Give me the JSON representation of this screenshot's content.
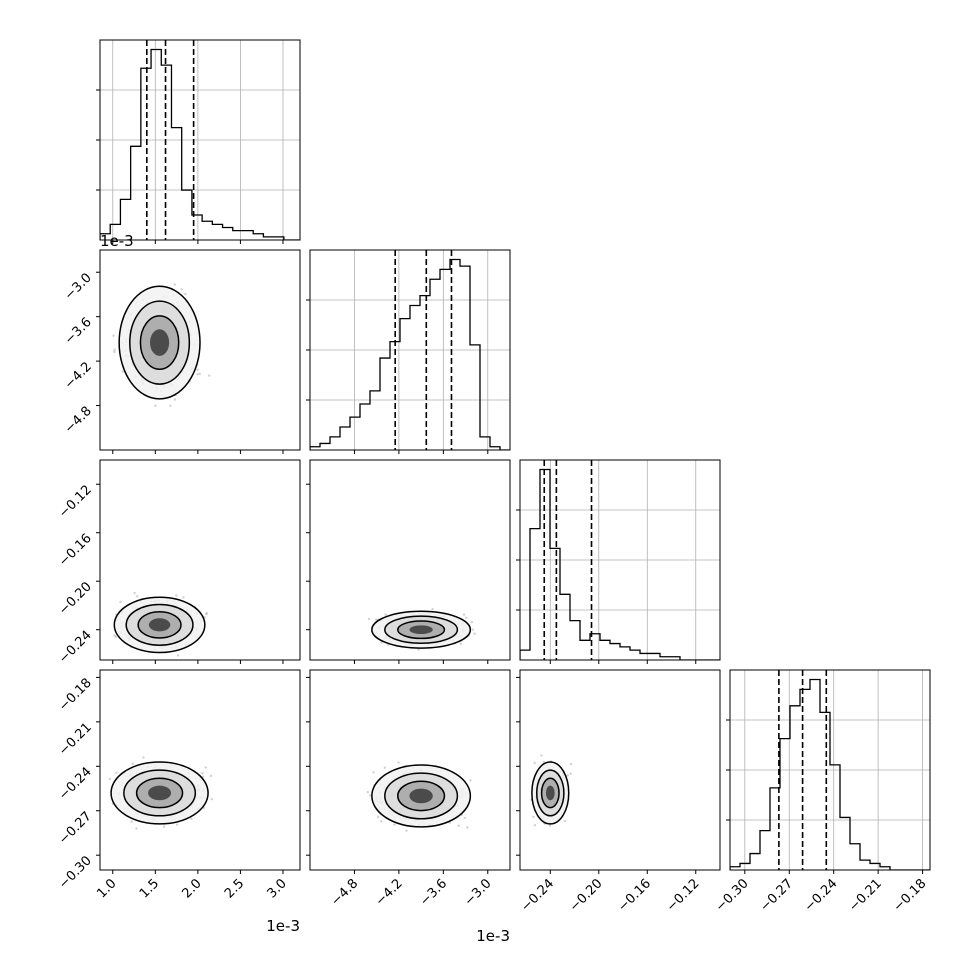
{
  "chart_data": {
    "type": "corner",
    "grid": true,
    "params": [
      {
        "xlim": [
          0.00085,
          0.0032
        ],
        "ticks": [
          0.001,
          0.0015,
          0.002,
          0.0025,
          0.003
        ],
        "tick_labels": [
          "1.0",
          "1.5",
          "2.0",
          "2.5",
          "3.0"
        ],
        "offset_label": "1e-3"
      },
      {
        "xlim": [
          -0.0054,
          -0.0027
        ],
        "ticks": [
          -0.0048,
          -0.0042,
          -0.0036,
          -0.003
        ],
        "tick_labels": [
          "−4.8",
          "−4.2",
          "−3.6",
          "−3.0"
        ],
        "offset_label": "1e-3"
      },
      {
        "xlim": [
          -0.265,
          -0.1
        ],
        "ticks": [
          -0.24,
          -0.2,
          -0.16,
          -0.12
        ],
        "tick_labels": [
          "−0.24",
          "−0.20",
          "−0.16",
          "−0.12"
        ],
        "offset_label": ""
      },
      {
        "xlim": [
          -0.31,
          -0.175
        ],
        "ticks": [
          -0.3,
          -0.27,
          -0.24,
          -0.21,
          -0.18
        ],
        "tick_labels": [
          "−0.30",
          "−0.27",
          "−0.24",
          "−0.21",
          "−0.18"
        ],
        "offset_label": ""
      }
    ],
    "histograms": [
      {
        "quantiles": [
          0.0014,
          0.00162,
          0.00195
        ],
        "bins": [
          0.00085,
          0.00097,
          0.00109,
          0.00121,
          0.00133,
          0.00145,
          0.00157,
          0.00169,
          0.00181,
          0.00193,
          0.00205,
          0.00217,
          0.00229,
          0.00241,
          0.00253,
          0.00265,
          0.00277,
          0.00289,
          0.00301,
          0.00313,
          0.00325
        ],
        "counts": [
          2,
          5,
          13,
          30,
          55,
          61,
          56,
          36,
          16,
          8,
          6,
          5,
          4,
          3,
          3,
          2,
          1,
          1,
          0,
          0
        ]
      },
      {
        "quantiles": [
          -0.00425,
          -0.00383,
          -0.00349
        ],
        "bins": [
          -0.0054,
          -0.005265,
          -0.00513,
          -0.004995,
          -0.00486,
          -0.004725,
          -0.00459,
          -0.004455,
          -0.00432,
          -0.004185,
          -0.00405,
          -0.003915,
          -0.00378,
          -0.003645,
          -0.00351,
          -0.003375,
          -0.00324,
          -0.003105,
          -0.00297,
          -0.002835,
          -0.0027
        ],
        "counts": [
          1,
          2,
          4,
          7,
          10,
          14,
          18,
          28,
          33,
          40,
          44,
          47,
          52,
          55,
          58,
          56,
          32,
          4,
          1,
          0
        ]
      },
      {
        "quantiles": [
          -0.245,
          -0.235,
          -0.206
        ],
        "bins": [
          -0.265,
          -0.25675,
          -0.2485,
          -0.24025,
          -0.232,
          -0.22375,
          -0.2155,
          -0.20725,
          -0.199,
          -0.19075,
          -0.1825,
          -0.17425,
          -0.166,
          -0.15775,
          -0.1495,
          -0.14125,
          -0.133,
          -0.12475,
          -0.1165,
          -0.10825,
          -0.1
        ],
        "counts": [
          3,
          40,
          58,
          34,
          20,
          12,
          6,
          8,
          6,
          5,
          4,
          3,
          2,
          2,
          1,
          1,
          0,
          0,
          0,
          0
        ]
      },
      {
        "quantiles": [
          -0.277,
          -0.261,
          -0.245
        ],
        "bins": [
          -0.31,
          -0.30325,
          -0.2965,
          -0.28975,
          -0.283,
          -0.27625,
          -0.2695,
          -0.26275,
          -0.256,
          -0.24925,
          -0.2425,
          -0.23575,
          -0.229,
          -0.22225,
          -0.2155,
          -0.20875,
          -0.202,
          -0.19525,
          -0.1885,
          -0.18175,
          -0.175
        ],
        "counts": [
          1,
          2,
          5,
          12,
          25,
          40,
          50,
          55,
          58,
          48,
          32,
          16,
          8,
          3,
          2,
          1,
          0,
          0,
          0,
          0
        ]
      }
    ],
    "scatter_pairs": [
      {
        "row": 1,
        "col": 0,
        "center": [
          0.00155,
          -0.00395
        ],
        "spread": [
          0.00025,
          0.0004
        ]
      },
      {
        "row": 2,
        "col": 0,
        "center": [
          0.00155,
          -0.236
        ],
        "spread": [
          0.00028,
          0.012
        ]
      },
      {
        "row": 2,
        "col": 1,
        "center": [
          -0.0039,
          -0.24
        ],
        "spread": [
          0.00035,
          0.008
        ]
      },
      {
        "row": 3,
        "col": 0,
        "center": [
          0.00155,
          -0.258
        ],
        "spread": [
          0.0003,
          0.011
        ]
      },
      {
        "row": 3,
        "col": 1,
        "center": [
          -0.0039,
          -0.26
        ],
        "spread": [
          0.00035,
          0.011
        ]
      },
      {
        "row": 3,
        "col": 2,
        "center": [
          -0.24,
          -0.258
        ],
        "spread": [
          0.008,
          0.011
        ]
      }
    ]
  }
}
